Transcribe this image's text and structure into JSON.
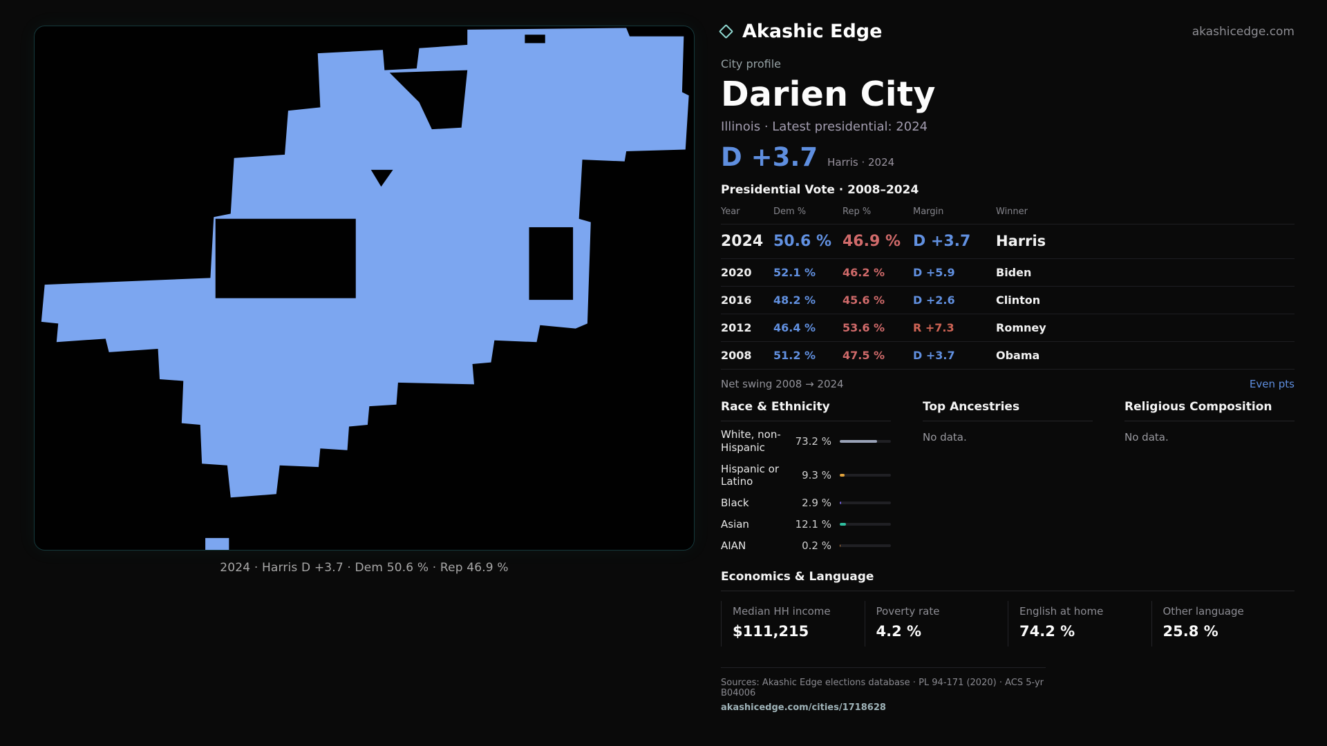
{
  "brand": {
    "name": "Akashic Edge",
    "domain": "akashicedge.com"
  },
  "profile": {
    "kicker": "City profile",
    "title": "Darien City",
    "subtitle": "Illinois · Latest presidential: 2024",
    "lead_margin": "D +3.7",
    "lead_context": "Harris · 2024"
  },
  "map": {
    "fill": "#7ca6f0",
    "caption": "2024 · Harris D +3.7 · Dem 50.6 % · Rep 46.9 %"
  },
  "vote_table": {
    "title": "Presidential Vote · 2008–2024",
    "headers": [
      "Year",
      "Dem %",
      "Rep %",
      "Margin",
      "Winner"
    ],
    "rows": [
      {
        "year": "2024",
        "dem": "50.6 %",
        "rep": "46.9 %",
        "margin": "D +3.7",
        "winner": "Harris"
      },
      {
        "year": "2020",
        "dem": "52.1 %",
        "rep": "46.2 %",
        "margin": "D +5.9",
        "winner": "Biden"
      },
      {
        "year": "2016",
        "dem": "48.2 %",
        "rep": "45.6 %",
        "margin": "D +2.6",
        "winner": "Clinton"
      },
      {
        "year": "2012",
        "dem": "46.4 %",
        "rep": "53.6 %",
        "margin": "R +7.3",
        "winner": "Romney"
      },
      {
        "year": "2008",
        "dem": "51.2 %",
        "rep": "47.5 %",
        "margin": "D +3.7",
        "winner": "Obama"
      }
    ],
    "net_swing_label": "Net swing 2008 → 2024",
    "net_swing_value": "Even pts"
  },
  "race": {
    "title": "Race & Ethnicity",
    "rows": [
      {
        "label": "White, non-Hispanic",
        "value": "73.2 %",
        "pct": 73.2,
        "color": "#9aa3b8"
      },
      {
        "label": "Hispanic or Latino",
        "value": "9.3 %",
        "pct": 9.3,
        "color": "#e0a23c"
      },
      {
        "label": "Black",
        "value": "2.9 %",
        "pct": 2.9,
        "color": "#6f5bd4"
      },
      {
        "label": "Asian",
        "value": "12.1 %",
        "pct": 12.1,
        "color": "#2fbf9f"
      },
      {
        "label": "AIAN",
        "value": "0.2 %",
        "pct": 0.2,
        "color": "#d0823c"
      }
    ]
  },
  "ancestries": {
    "title": "Top Ancestries",
    "empty": "No data."
  },
  "religion": {
    "title": "Religious Composition",
    "empty": "No data."
  },
  "economics": {
    "title": "Economics & Language",
    "stats": [
      {
        "label": "Median HH income",
        "value": "$111,215"
      },
      {
        "label": "Poverty rate",
        "value": "4.2 %"
      },
      {
        "label": "English at home",
        "value": "74.2 %"
      },
      {
        "label": "Other language",
        "value": "25.8 %"
      }
    ]
  },
  "footer": {
    "sources": "Sources: Akashic Edge elections database · PL 94-171 (2020) · ACS 5-yr B04006",
    "permalink": "akashicedge.com/cities/1718628"
  }
}
